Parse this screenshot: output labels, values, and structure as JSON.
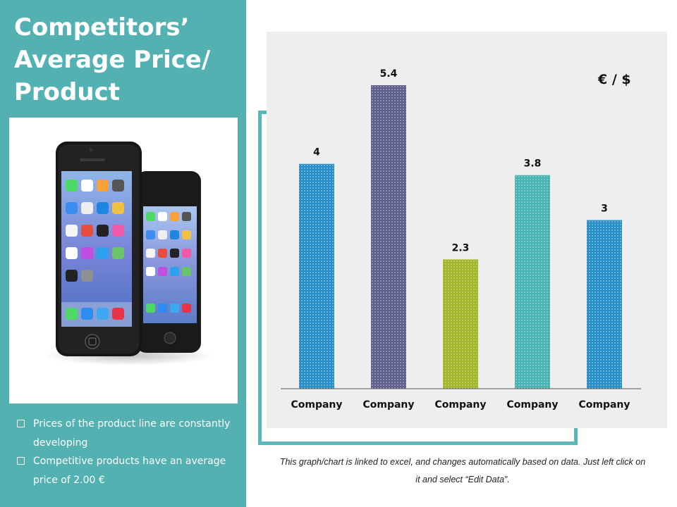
{
  "slide": {
    "title": "Competitors’\nAverage Price/\nProduct",
    "bullets": [
      "Prices of the product line are constantly developing",
      "Competitive products have an average price of 2.00 €"
    ],
    "footnote": "This graph/chart is linked to excel, and changes automatically based on data. Just left click on it and select “Edit Data”.",
    "unit_label": "€ / $"
  },
  "colors": {
    "panel": "#53b1b1",
    "bars": [
      "#2a8fc6",
      "#5f5f8f",
      "#a3b52a",
      "#48b2b2",
      "#2a8fc6"
    ]
  },
  "chart_data": {
    "type": "bar",
    "categories": [
      "Company",
      "Company",
      "Company",
      "Company",
      "Company"
    ],
    "values": [
      4,
      5.4,
      2.3,
      3.8,
      3
    ],
    "value_labels": [
      "4",
      "5.4",
      "2.3",
      "3.8",
      "3"
    ],
    "title": "",
    "xlabel": "",
    "ylabel": "",
    "ylim": [
      0,
      5.4
    ],
    "grid": false,
    "legend": "none"
  }
}
